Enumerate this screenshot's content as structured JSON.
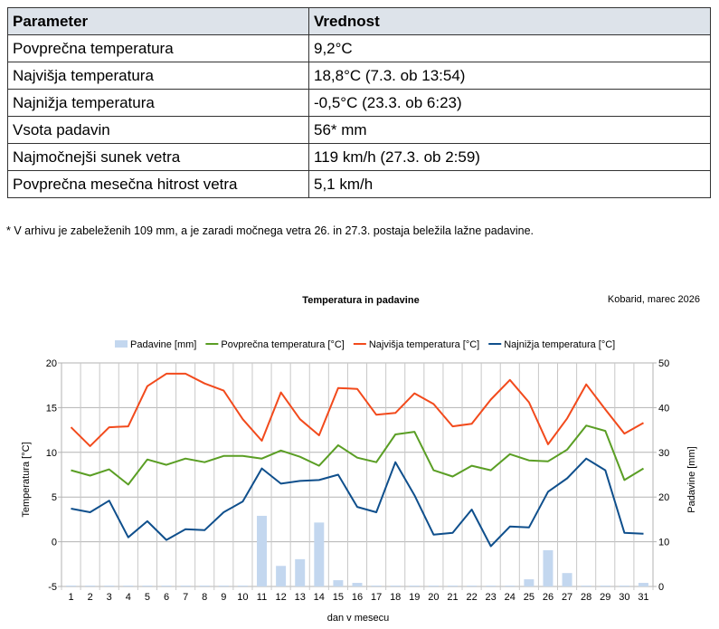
{
  "table": {
    "headers": [
      "Parameter",
      "Vrednost"
    ],
    "rows": [
      [
        "Povprečna temperatura",
        "9,2°C"
      ],
      [
        "Najvišja temperatura",
        "18,8°C (7.3. ob 13:54)"
      ],
      [
        "Najnižja temperatura",
        "-0,5°C (23.3. ob 6:23)"
      ],
      [
        "Vsota padavin",
        "56* mm"
      ],
      [
        "Najmočnejši sunek vetra",
        "119 km/h (27.3. ob 2:59)"
      ],
      [
        "Povprečna mesečna hitrost vetra",
        "5,1 km/h"
      ]
    ]
  },
  "footnote": "* V arhivu je zabeleženih 109 mm, a je zaradi močnega vetra 26. in 27.3. postaja beležila lažne padavine.",
  "chart_data": {
    "type": "line",
    "title": "Temperatura in padavine",
    "subtitle": "Kobarid, marec 2026",
    "xlabel": "dan v mesecu",
    "ylabel": "Temperatura [°C]",
    "y2label": "Padavine [mm]",
    "ylim": [
      -5,
      20
    ],
    "y2lim": [
      0,
      50
    ],
    "yticks": [
      "-5",
      "0",
      "5",
      "10",
      "15",
      "20"
    ],
    "y2ticks": [
      "0",
      "10",
      "20",
      "30",
      "40",
      "50"
    ],
    "grid": true,
    "legend_position": "top",
    "categories": [
      "1",
      "2",
      "3",
      "4",
      "5",
      "6",
      "7",
      "8",
      "9",
      "10",
      "11",
      "12",
      "13",
      "14",
      "15",
      "16",
      "17",
      "18",
      "19",
      "20",
      "21",
      "22",
      "23",
      "24",
      "25",
      "26",
      "27",
      "28",
      "29",
      "30",
      "31"
    ],
    "series": [
      {
        "name": "Padavine [mm]",
        "type": "bar",
        "axis": "right",
        "color": "#c3d7ef",
        "values": [
          0,
          0,
          0,
          0,
          0,
          0,
          0,
          0,
          0,
          0,
          15.8,
          4.6,
          6.1,
          14.3,
          1.4,
          0.8,
          0,
          0,
          0,
          0,
          0,
          0,
          0,
          0,
          1.6,
          8.1,
          3.0,
          0,
          0,
          0,
          0.8
        ]
      },
      {
        "name": "Povprečna temperatura [°C]",
        "type": "line",
        "axis": "left",
        "color": "#5a9e24",
        "values": [
          8.0,
          7.4,
          8.1,
          6.4,
          9.2,
          8.6,
          9.3,
          8.9,
          9.6,
          9.6,
          9.3,
          10.2,
          9.5,
          8.5,
          10.8,
          9.4,
          8.9,
          12.0,
          12.3,
          8.0,
          7.3,
          8.5,
          8.0,
          9.8,
          9.1,
          9.0,
          10.3,
          13.0,
          12.4,
          6.9,
          8.2
        ]
      },
      {
        "name": "Najvišja temperatura [°C]",
        "type": "line",
        "axis": "left",
        "color": "#f24a1c",
        "values": [
          12.8,
          10.7,
          12.8,
          12.9,
          17.4,
          18.8,
          18.8,
          17.7,
          16.9,
          13.7,
          11.3,
          16.7,
          13.7,
          11.9,
          17.2,
          17.1,
          14.2,
          14.4,
          16.6,
          15.4,
          12.9,
          13.2,
          15.9,
          18.1,
          15.6,
          10.9,
          13.8,
          17.6,
          14.8,
          12.1,
          13.3
        ]
      },
      {
        "name": "Najnižja temperatura [°C]",
        "type": "line",
        "axis": "left",
        "color": "#0f4f8c",
        "values": [
          3.7,
          3.3,
          4.6,
          0.5,
          2.3,
          0.2,
          1.4,
          1.3,
          3.3,
          4.5,
          8.2,
          6.5,
          6.8,
          6.9,
          7.5,
          3.9,
          3.3,
          8.9,
          5.2,
          0.8,
          1.0,
          3.6,
          -0.5,
          1.7,
          1.6,
          5.6,
          7.1,
          9.3,
          8.0,
          1.0,
          0.9
        ]
      }
    ]
  }
}
